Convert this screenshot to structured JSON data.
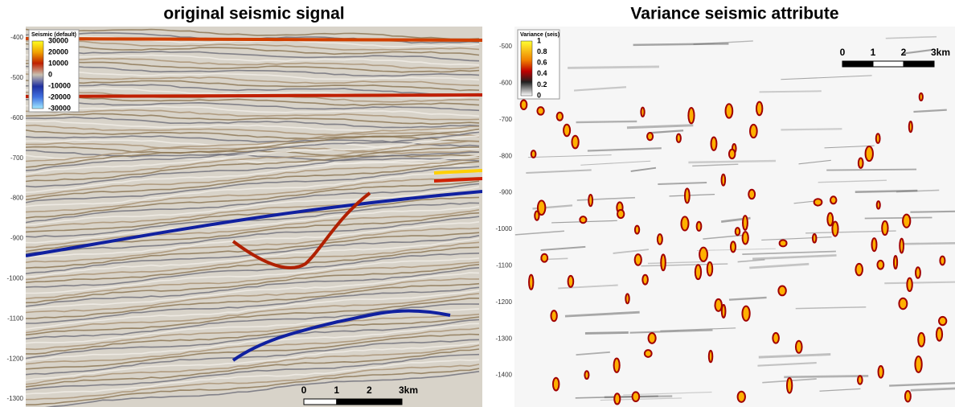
{
  "panels": [
    {
      "title": "original seismic signal",
      "legend": {
        "title": "Seismic (default)",
        "labels": [
          "30000",
          "20000",
          "10000",
          "0",
          "-10000",
          "-20000",
          "-30000"
        ]
      },
      "depth_ticks": [
        "-400",
        "-500",
        "-600",
        "-700",
        "-800",
        "-900",
        "-1000",
        "-1100",
        "-1200",
        "-1300"
      ],
      "scale": [
        "0",
        "1",
        "2",
        "3km"
      ]
    },
    {
      "title": "Variance seismic attribute",
      "legend": {
        "title": "Variance (seis)",
        "labels": [
          "1",
          "0.8",
          "0.6",
          "0.4",
          "0.2",
          "0"
        ]
      },
      "depth_ticks": [
        "-500",
        "-600",
        "-700",
        "-800",
        "-900",
        "-1000",
        "-1100",
        "-1200",
        "-1300",
        "-1400"
      ],
      "scale": [
        "0",
        "1",
        "2",
        "3km"
      ]
    }
  ]
}
